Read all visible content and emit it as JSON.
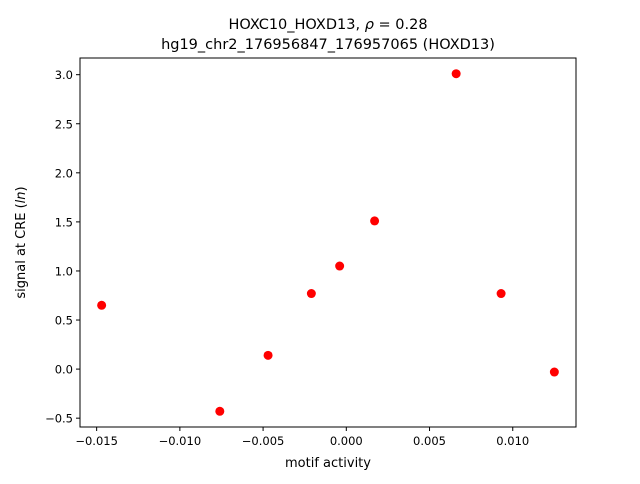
{
  "chart_data": {
    "type": "scatter",
    "title_line1": "HOXC10_HOXD13, ρ = 0.28",
    "title_line2": "hg19_chr2_176956847_176957065 (HOXD13)",
    "xlabel": "motif activity",
    "ylabel": "signal at CRE (ln)",
    "xlim": [
      -0.016,
      0.0138
    ],
    "ylim": [
      -0.59,
      3.17
    ],
    "x_ticks": [
      -0.015,
      -0.01,
      -0.005,
      0.0,
      0.005,
      0.01
    ],
    "x_tick_labels": [
      "−0.015",
      "−0.010",
      "−0.005",
      "0.000",
      "0.005",
      "0.010"
    ],
    "y_ticks": [
      -0.5,
      0.0,
      0.5,
      1.0,
      1.5,
      2.0,
      2.5,
      3.0
    ],
    "y_tick_labels": [
      "−0.5",
      "0.0",
      "0.5",
      "1.0",
      "1.5",
      "2.0",
      "2.5",
      "3.0"
    ],
    "grid": false,
    "marker_color": "#ff0000",
    "points": [
      {
        "x": -0.0147,
        "y": 0.65
      },
      {
        "x": -0.0076,
        "y": -0.43
      },
      {
        "x": -0.0047,
        "y": 0.14
      },
      {
        "x": -0.0021,
        "y": 0.77
      },
      {
        "x": -0.0004,
        "y": 1.05
      },
      {
        "x": 0.0017,
        "y": 1.51
      },
      {
        "x": 0.0066,
        "y": 3.01
      },
      {
        "x": 0.0093,
        "y": 0.77
      },
      {
        "x": 0.0125,
        "y": -0.03
      }
    ]
  }
}
